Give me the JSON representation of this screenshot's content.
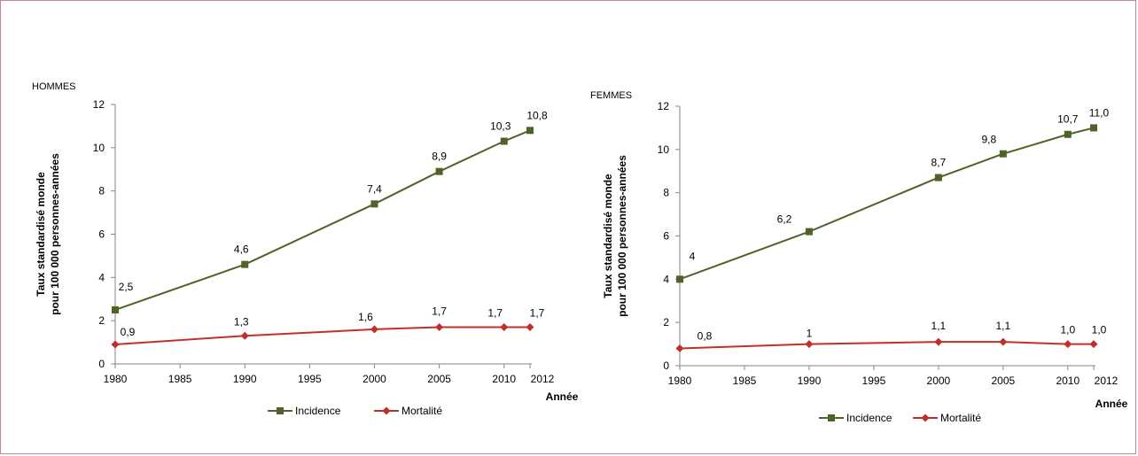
{
  "chart_data": [
    {
      "type": "line",
      "title": "HOMMES",
      "ylabel_line1": "Taux standardisé monde",
      "ylabel_line2": "pour 100 000 personnes-années",
      "xlabel": "Année",
      "x_ticks": [
        "1980",
        "1985",
        "1990",
        "1995",
        "2000",
        "2005",
        "2010",
        "2012"
      ],
      "y_ticks": [
        "0",
        "2",
        "4",
        "6",
        "8",
        "10",
        "12"
      ],
      "xlim": [
        1980,
        2012
      ],
      "ylim": [
        0,
        12
      ],
      "grid": false,
      "legend_position": "bottom",
      "x": [
        1980,
        1990,
        2000,
        2005,
        2010,
        2012
      ],
      "series": [
        {
          "name": "Incidence",
          "color": "#4f6228",
          "marker": "square",
          "values": [
            2.5,
            4.6,
            7.4,
            8.9,
            10.3,
            10.8
          ],
          "labels": [
            "2,5",
            "4,6",
            "7,4",
            "8,9",
            "10,3",
            "10,8"
          ]
        },
        {
          "name": "Mortalité",
          "color": "#c0302b",
          "marker": "diamond",
          "values": [
            0.9,
            1.3,
            1.6,
            1.7,
            1.7,
            1.7
          ],
          "labels": [
            "0,9",
            "1,3",
            "1,6",
            "1,7",
            "1,7",
            "1,7"
          ]
        }
      ]
    },
    {
      "type": "line",
      "title": "FEMMES",
      "ylabel_line1": "Taux standardisé monde",
      "ylabel_line2": "pour 100 000 personnes-années",
      "xlabel": "Année",
      "x_ticks": [
        "1980",
        "1985",
        "1990",
        "1995",
        "2000",
        "2005",
        "2010",
        "2012"
      ],
      "y_ticks": [
        "0",
        "2",
        "4",
        "6",
        "8",
        "10",
        "12"
      ],
      "xlim": [
        1980,
        2012
      ],
      "ylim": [
        0,
        12
      ],
      "grid": false,
      "legend_position": "bottom",
      "x": [
        1980,
        1990,
        2000,
        2005,
        2010,
        2012
      ],
      "series": [
        {
          "name": "Incidence",
          "color": "#4f6228",
          "marker": "square",
          "values": [
            4.0,
            6.2,
            8.7,
            9.8,
            10.7,
            11.0
          ],
          "labels": [
            "4",
            "6,2",
            "8,7",
            "9,8",
            "10,7",
            "11,0"
          ]
        },
        {
          "name": "Mortalité",
          "color": "#c0302b",
          "marker": "diamond",
          "values": [
            0.8,
            1.0,
            1.1,
            1.1,
            1.0,
            1.0
          ],
          "labels": [
            "0,8",
            "1",
            "1,1",
            "1,1",
            "1,0",
            "1,0"
          ]
        }
      ]
    }
  ]
}
